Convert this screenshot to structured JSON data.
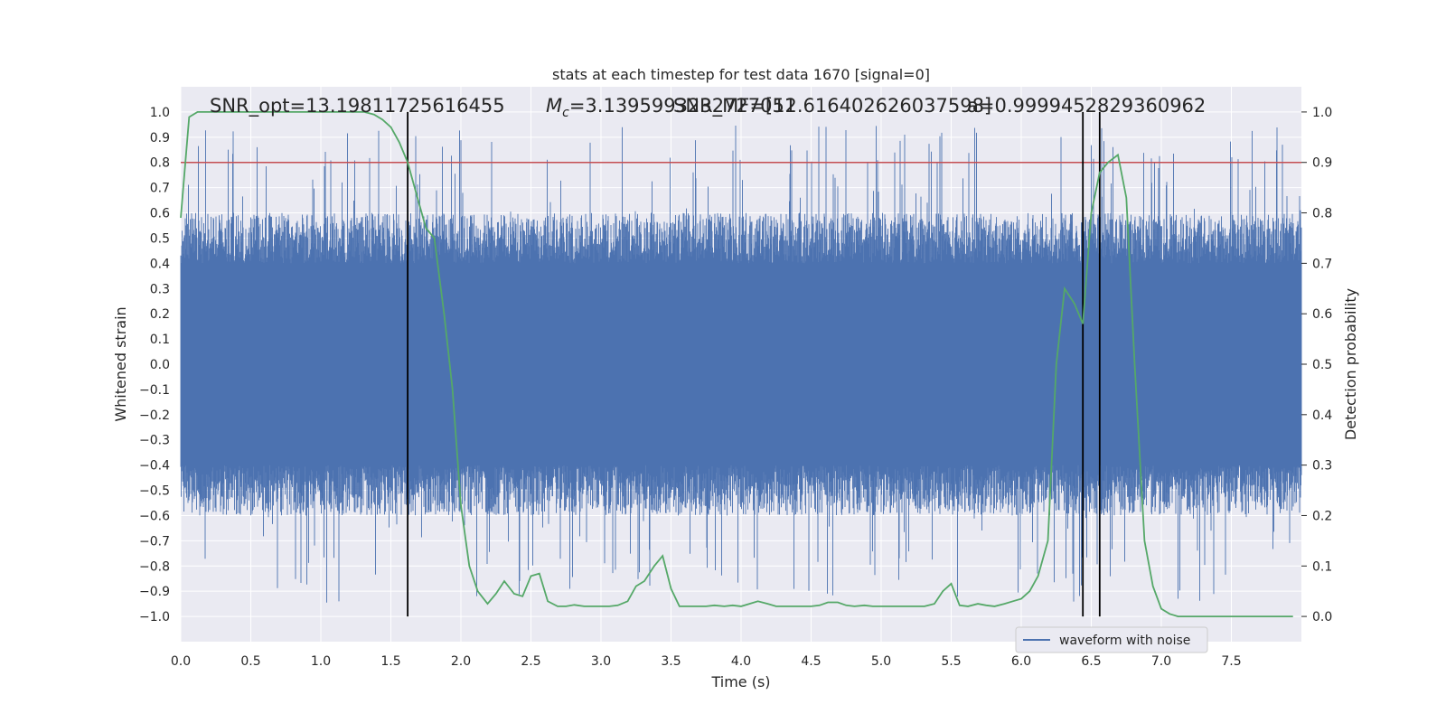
{
  "chart_data": {
    "type": "line",
    "title": "stats at each timestep for test data 1670 [signal=0]",
    "xlabel": "Time (s)",
    "ylabel_left": "Whitened strain",
    "ylabel_right": "Detection probability",
    "xlim": [
      0,
      8
    ],
    "ylim_left": [
      -1.1,
      1.1
    ],
    "ylim_right": [
      -0.05,
      1.05
    ],
    "x_ticks": [
      "0.0",
      "0.5",
      "1.0",
      "1.5",
      "2.0",
      "2.5",
      "3.0",
      "3.5",
      "4.0",
      "4.5",
      "5.0",
      "5.5",
      "6.0",
      "6.5",
      "7.0",
      "7.5"
    ],
    "y_left_ticks": [
      "1.0",
      "0.9",
      "0.8",
      "0.7",
      "0.6",
      "0.5",
      "0.4",
      "0.3",
      "0.2",
      "0.1",
      "0.0",
      "-0.1",
      "-0.2",
      "-0.3",
      "-0.4",
      "-0.5",
      "-0.6",
      "-0.7",
      "-0.8",
      "-0.9",
      "-1.0"
    ],
    "y_right_ticks": [
      "1.0",
      "0.9",
      "0.8",
      "0.7",
      "0.6",
      "0.5",
      "0.4",
      "0.3",
      "0.2",
      "0.1",
      "0.0"
    ],
    "grid": true,
    "legend": {
      "position": "lower-right",
      "entries": [
        "waveform with noise"
      ]
    },
    "annotations": [
      "SNR_opt=13.19811725616455",
      "=3.1395993232727051",
      "SNR_MF=[12.616402626037598]",
      "a=0.9999452829360962"
    ],
    "mc_symbol": "M",
    "mc_subscript": "c",
    "threshold_line": {
      "value": 0.9,
      "axis": "right",
      "color": "#c44e52"
    },
    "vertical_lines": [
      1.62,
      6.44,
      6.56
    ],
    "waveform_color": "#4c72b0",
    "probability_color": "#55a868",
    "series": [
      {
        "name": "waveform with noise",
        "description": "whitened strain noise, dense, amplitude mostly within +/-0.4 with spikes to about +/-0.95"
      },
      {
        "x": [
          0.0,
          0.06,
          0.12,
          0.19,
          0.25,
          0.31,
          0.38,
          0.44,
          0.5,
          0.56,
          0.62,
          0.69,
          0.75,
          0.81,
          0.88,
          0.94,
          1.0,
          1.06,
          1.12,
          1.19,
          1.25,
          1.31,
          1.38,
          1.44,
          1.5,
          1.56,
          1.62,
          1.69,
          1.75,
          1.81,
          1.88,
          1.94,
          2.0,
          2.06,
          2.12,
          2.19,
          2.25,
          2.31,
          2.38,
          2.44,
          2.5,
          2.56,
          2.62,
          2.69,
          2.75,
          2.81,
          2.88,
          2.94,
          3.0,
          3.06,
          3.12,
          3.19,
          3.25,
          3.31,
          3.38,
          3.44,
          3.5,
          3.56,
          3.62,
          3.69,
          3.75,
          3.81,
          3.88,
          3.94,
          4.0,
          4.06,
          4.12,
          4.19,
          4.25,
          4.31,
          4.38,
          4.44,
          4.5,
          4.56,
          4.62,
          4.69,
          4.75,
          4.81,
          4.88,
          4.94,
          5.0,
          5.06,
          5.12,
          5.19,
          5.25,
          5.31,
          5.38,
          5.44,
          5.5,
          5.56,
          5.62,
          5.69,
          5.75,
          5.81,
          5.88,
          5.94,
          6.0,
          6.06,
          6.12,
          6.19,
          6.25,
          6.31,
          6.38,
          6.44,
          6.5,
          6.56,
          6.62,
          6.69,
          6.75,
          6.81,
          6.88,
          6.94,
          7.0,
          7.06,
          7.12,
          7.19,
          7.25,
          7.31,
          7.38,
          7.44,
          7.5,
          7.56,
          7.62,
          7.69,
          7.75,
          7.81,
          7.88,
          7.94
        ],
        "y": [
          0.79,
          0.99,
          1.0,
          1.0,
          1.0,
          1.0,
          1.0,
          1.0,
          1.0,
          1.0,
          1.0,
          1.0,
          1.0,
          1.0,
          1.0,
          1.0,
          1.0,
          1.0,
          1.0,
          1.0,
          1.0,
          1.0,
          0.995,
          0.985,
          0.97,
          0.94,
          0.9,
          0.83,
          0.77,
          0.75,
          0.6,
          0.45,
          0.22,
          0.1,
          0.05,
          0.025,
          0.045,
          0.07,
          0.045,
          0.04,
          0.08,
          0.085,
          0.03,
          0.02,
          0.02,
          0.023,
          0.02,
          0.02,
          0.02,
          0.02,
          0.022,
          0.03,
          0.06,
          0.07,
          0.1,
          0.12,
          0.055,
          0.02,
          0.02,
          0.02,
          0.02,
          0.022,
          0.02,
          0.022,
          0.02,
          0.025,
          0.03,
          0.025,
          0.02,
          0.02,
          0.02,
          0.02,
          0.02,
          0.022,
          0.028,
          0.028,
          0.022,
          0.02,
          0.022,
          0.02,
          0.02,
          0.02,
          0.02,
          0.02,
          0.02,
          0.02,
          0.025,
          0.05,
          0.065,
          0.022,
          0.02,
          0.025,
          0.022,
          0.02,
          0.025,
          0.03,
          0.035,
          0.05,
          0.08,
          0.15,
          0.5,
          0.65,
          0.62,
          0.58,
          0.8,
          0.88,
          0.9,
          0.915,
          0.83,
          0.5,
          0.15,
          0.06,
          0.015,
          0.005,
          0.0,
          0.0,
          0.0,
          0.0,
          0.0,
          0.0,
          0.0,
          0.0,
          0.0,
          0.0,
          0.0,
          0.0,
          0.0,
          0.0
        ]
      }
    ]
  }
}
